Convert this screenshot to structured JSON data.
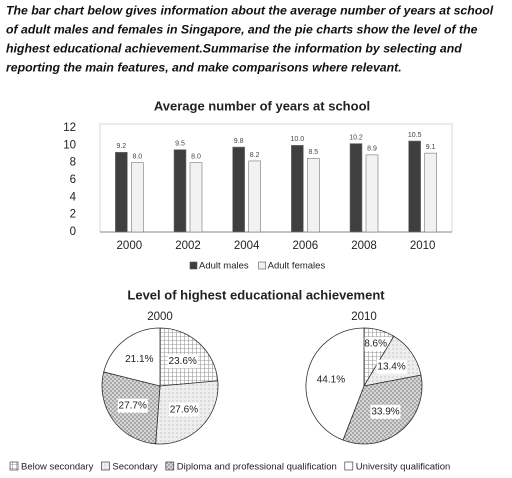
{
  "prompt": [
    "The bar chart below gives information about the average number of years at school",
    "of adult males and females in Singapore, and the pie charts show the level of the",
    "highest educational achievement.Summarise the information by selecting and",
    "reporting the main features, and make comparisons where relevant."
  ],
  "chart_data": [
    {
      "type": "bar",
      "title": "Average number of years at school",
      "categories": [
        "2000",
        "2002",
        "2004",
        "2006",
        "2008",
        "2010"
      ],
      "series": [
        {
          "name": "Adult males",
          "color": "#3f3f3f",
          "values": [
            9.2,
            9.5,
            9.8,
            10.0,
            10.2,
            10.5
          ],
          "value_labels": [
            "9.2",
            "9.5",
            "9.8",
            "10.0",
            "10.2",
            "10.5"
          ]
        },
        {
          "name": "Adult females",
          "color": "#f2f2f2",
          "values": [
            8.0,
            8.0,
            8.2,
            8.5,
            8.9,
            9.1
          ],
          "value_labels": [
            "8.0",
            "8.0",
            "8.2",
            "8.5",
            "8.9",
            "9.1"
          ]
        }
      ],
      "ylim": [
        0,
        12
      ],
      "yticks": [
        0,
        2,
        4,
        6,
        8,
        10,
        12
      ],
      "grid": false
    },
    {
      "type": "pie",
      "title": "Level of highest educational achievement",
      "categories": [
        "Below secondary",
        "Secondary",
        "Diploma and professional qualification",
        "University qualification"
      ],
      "colors": [
        "#ffffff",
        "#eeeeee",
        "#d6d6d6",
        "#ffffff"
      ],
      "series": [
        {
          "name": "2000",
          "values": [
            23.6,
            27.6,
            27.7,
            21.1
          ],
          "value_labels": [
            "23.6%",
            "27.6%",
            "27.7%",
            "21.1%"
          ]
        },
        {
          "name": "2010",
          "values": [
            8.6,
            13.4,
            33.9,
            44.1
          ],
          "value_labels": [
            "8.6%",
            "13.4%",
            "33.9%",
            "44.1%"
          ]
        }
      ]
    }
  ]
}
